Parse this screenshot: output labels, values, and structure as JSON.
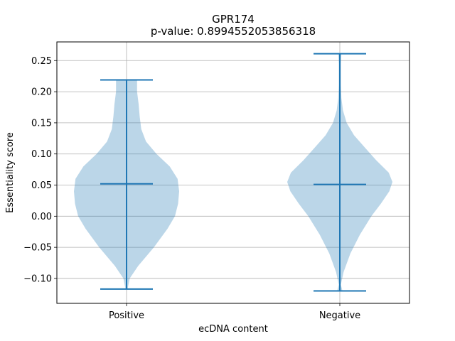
{
  "chart_data": {
    "type": "violin",
    "title": "GPR174",
    "subtitle": "p-value: 0.8994552053856318",
    "xlabel": "ecDNA content",
    "ylabel": "Essentiality score",
    "categories": [
      "Positive",
      "Negative"
    ],
    "ylim": [
      -0.14,
      0.28
    ],
    "yticks": [
      -0.1,
      -0.05,
      0.0,
      0.05,
      0.1,
      0.15,
      0.2,
      0.25
    ],
    "ytick_labels": [
      "−0.10",
      "−0.05",
      "0.00",
      "0.05",
      "0.10",
      "0.15",
      "0.20",
      "0.25"
    ],
    "grid": true,
    "colors": {
      "fill": "#1f77b4",
      "fill_alpha": 0.3,
      "line": "#1f77b4",
      "grid": "#b0b0b0"
    },
    "violins": [
      {
        "category": "Positive",
        "min": -0.117,
        "median": 0.052,
        "max": 0.219,
        "density": [
          [
            -0.117,
            0.02
          ],
          [
            -0.1,
            0.06
          ],
          [
            -0.08,
            0.22
          ],
          [
            -0.05,
            0.52
          ],
          [
            -0.02,
            0.78
          ],
          [
            0.0,
            0.92
          ],
          [
            0.02,
            0.98
          ],
          [
            0.04,
            1.0
          ],
          [
            0.06,
            0.97
          ],
          [
            0.08,
            0.82
          ],
          [
            0.1,
            0.57
          ],
          [
            0.12,
            0.37
          ],
          [
            0.14,
            0.28
          ],
          [
            0.16,
            0.25
          ],
          [
            0.18,
            0.23
          ],
          [
            0.2,
            0.2
          ],
          [
            0.219,
            0.2
          ]
        ]
      },
      {
        "category": "Negative",
        "min": -0.12,
        "median": 0.051,
        "max": 0.261,
        "density": [
          [
            -0.12,
            0.05
          ],
          [
            -0.11,
            0.02
          ],
          [
            -0.09,
            0.07
          ],
          [
            -0.06,
            0.2
          ],
          [
            -0.03,
            0.38
          ],
          [
            0.0,
            0.6
          ],
          [
            0.02,
            0.78
          ],
          [
            0.04,
            0.94
          ],
          [
            0.055,
            1.0
          ],
          [
            0.07,
            0.93
          ],
          [
            0.09,
            0.69
          ],
          [
            0.11,
            0.48
          ],
          [
            0.13,
            0.27
          ],
          [
            0.15,
            0.13
          ],
          [
            0.17,
            0.06
          ],
          [
            0.19,
            0.03
          ],
          [
            0.21,
            0.02
          ],
          [
            0.23,
            0.02
          ],
          [
            0.245,
            0.02
          ],
          [
            0.261,
            0.03
          ]
        ]
      }
    ]
  }
}
